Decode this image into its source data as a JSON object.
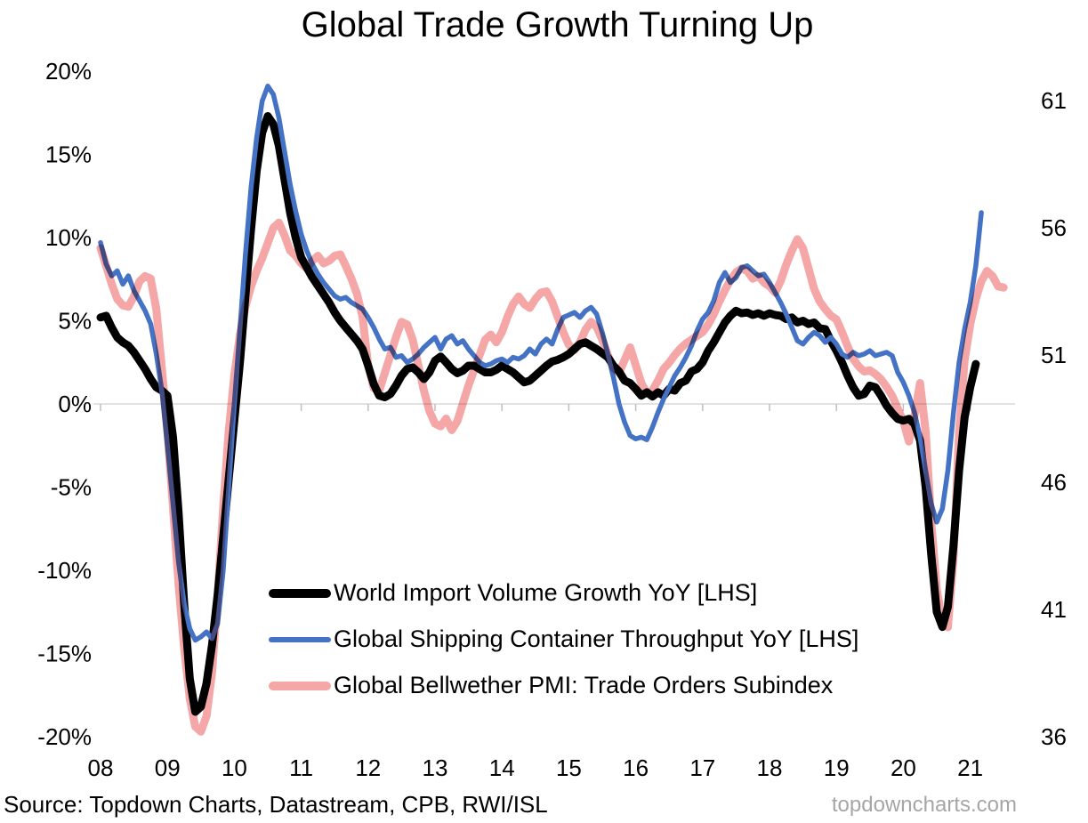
{
  "title": "Global Trade Growth Turning Up",
  "source_note": "Source: Topdown Charts, Datastream, CPB, RWI/ISL",
  "watermark": "topdowncharts.com",
  "colors": {
    "world_imports": "#000000",
    "container_throughput": "#4472C4",
    "pmi": "#F5A6A6",
    "zero_line": "#D9D9D9",
    "tick": "#BFBFBF",
    "watermark": "#A6A6A6"
  },
  "chart_data": {
    "type": "line",
    "title": "Global Trade Growth Turning Up",
    "x_start": "2008-01",
    "x_frequency": "monthly",
    "x_tick_labels": [
      "08",
      "09",
      "10",
      "11",
      "12",
      "13",
      "14",
      "15",
      "16",
      "17",
      "18",
      "19",
      "20",
      "21"
    ],
    "left_axis": {
      "tick_labels": [
        "20%",
        "15%",
        "10%",
        "5%",
        "0%",
        "-5%",
        "-10%",
        "-15%",
        "-20%"
      ],
      "min": -20,
      "max": 20,
      "gridlines": "zero-only"
    },
    "right_axis": {
      "tick_labels": [
        "61",
        "56",
        "51",
        "46",
        "41",
        "36"
      ],
      "min": 36,
      "max": 61
    },
    "legend_position": "inside-lower-left",
    "series": [
      {
        "name": "World Import Volume Growth YoY [LHS]",
        "axis": "left",
        "color": "#000000",
        "stroke_width": 9,
        "values": [
          5.2,
          5.3,
          4.6,
          4.0,
          3.7,
          3.5,
          3.1,
          2.6,
          2.1,
          1.5,
          1.0,
          0.8,
          0.5,
          -2.0,
          -6.5,
          -12.0,
          -16.5,
          -18.5,
          -18.2,
          -16.8,
          -14.5,
          -11.5,
          -8.0,
          -4.5,
          -1.0,
          2.5,
          6.5,
          10.5,
          14.0,
          16.3,
          17.3,
          16.8,
          15.5,
          13.5,
          11.5,
          10.0,
          8.8,
          8.2,
          7.6,
          7.1,
          6.6,
          6.1,
          5.5,
          5.0,
          4.6,
          4.2,
          3.8,
          3.3,
          2.3,
          1.2,
          0.5,
          0.4,
          0.6,
          1.1,
          1.7,
          2.1,
          2.2,
          1.9,
          1.5,
          1.9,
          2.6,
          2.85,
          2.5,
          2.1,
          1.85,
          2.0,
          2.3,
          2.3,
          2.1,
          1.9,
          1.9,
          2.05,
          2.3,
          2.1,
          1.9,
          1.6,
          1.3,
          1.4,
          1.7,
          2.0,
          2.3,
          2.55,
          2.65,
          2.8,
          3.0,
          3.3,
          3.6,
          3.7,
          3.5,
          3.3,
          3.05,
          2.8,
          2.3,
          1.95,
          1.4,
          1.25,
          0.9,
          0.5,
          0.7,
          0.45,
          0.7,
          0.5,
          0.9,
          0.8,
          1.25,
          1.4,
          1.95,
          2.1,
          2.5,
          3.2,
          3.7,
          4.3,
          4.9,
          5.3,
          5.6,
          5.45,
          5.5,
          5.35,
          5.45,
          5.3,
          5.45,
          5.35,
          5.3,
          5.1,
          5.2,
          4.9,
          5.0,
          4.8,
          4.9,
          4.55,
          4.5,
          3.8,
          3.2,
          2.5,
          1.7,
          1.0,
          0.5,
          0.6,
          1.1,
          1.0,
          0.5,
          -0.1,
          -0.55,
          -0.9,
          -1.0,
          -0.9,
          -1.2,
          -2.2,
          -5.0,
          -9.0,
          -12.5,
          -13.4,
          -12.2,
          -8.5,
          -4.0,
          -0.8,
          1.0,
          2.4
        ]
      },
      {
        "name": "Global Shipping Container Throughput YoY [LHS]",
        "axis": "left",
        "color": "#4472C4",
        "stroke_width": 5.5,
        "values": [
          9.7,
          8.4,
          7.7,
          8.0,
          7.2,
          7.7,
          6.8,
          6.2,
          5.6,
          4.8,
          3.0,
          0.8,
          -2.5,
          -6.0,
          -9.5,
          -12.0,
          -13.5,
          -14.2,
          -14.0,
          -13.7,
          -14.1,
          -13.2,
          -10.0,
          -5.0,
          0.0,
          4.5,
          9.0,
          13.0,
          16.0,
          18.2,
          19.1,
          18.6,
          17.2,
          15.2,
          13.2,
          11.6,
          10.2,
          9.2,
          8.4,
          7.8,
          7.3,
          6.9,
          6.5,
          6.3,
          6.4,
          6.1,
          5.9,
          5.7,
          5.2,
          4.6,
          3.9,
          3.3,
          3.4,
          2.8,
          2.9,
          2.5,
          2.7,
          3.0,
          3.4,
          3.7,
          4.0,
          3.3,
          3.9,
          4.1,
          3.6,
          3.8,
          3.3,
          2.9,
          2.5,
          2.3,
          2.4,
          2.6,
          2.7,
          2.5,
          2.8,
          2.7,
          2.9,
          3.3,
          3.0,
          3.6,
          3.9,
          3.6,
          4.5,
          5.2,
          5.35,
          5.5,
          5.2,
          5.6,
          5.8,
          5.4,
          4.3,
          3.0,
          1.6,
          0.0,
          -1.1,
          -1.9,
          -2.1,
          -2.0,
          -2.15,
          -1.4,
          -0.5,
          0.3,
          1.0,
          1.7,
          2.2,
          2.8,
          3.5,
          4.4,
          5.1,
          5.5,
          6.2,
          7.3,
          7.9,
          7.3,
          7.6,
          8.2,
          8.3,
          8.0,
          7.7,
          7.8,
          7.3,
          6.7,
          6.1,
          5.4,
          4.6,
          3.8,
          3.6,
          4.0,
          4.3,
          4.1,
          3.7,
          4.0,
          3.6,
          3.0,
          2.8,
          3.1,
          2.9,
          3.0,
          3.2,
          2.9,
          3.0,
          3.1,
          2.9,
          1.9,
          1.3,
          0.5,
          -0.5,
          -2.0,
          -4.0,
          -6.0,
          -7.1,
          -6.3,
          -4.0,
          -0.5,
          2.5,
          4.5,
          6.1,
          8.3,
          11.5
        ]
      },
      {
        "name": "Global Bellwether PMI: Trade Orders Subindex",
        "axis": "right",
        "color": "#F5A6A6",
        "stroke_width": 9,
        "values": [
          55.2,
          54.5,
          53.8,
          53.2,
          52.95,
          52.9,
          53.3,
          53.9,
          54.1,
          54.0,
          52.8,
          50.5,
          48.0,
          45.0,
          42.0,
          39.5,
          37.5,
          36.4,
          36.2,
          36.8,
          38.5,
          41.5,
          45.0,
          48.0,
          50.2,
          51.8,
          52.9,
          53.7,
          54.3,
          54.8,
          55.4,
          56.0,
          56.2,
          55.7,
          55.1,
          54.9,
          54.6,
          54.4,
          54.7,
          54.9,
          54.6,
          54.7,
          54.9,
          54.95,
          54.5,
          54.0,
          53.4,
          52.5,
          50.6,
          49.7,
          49.6,
          50.3,
          51.0,
          51.7,
          52.3,
          52.2,
          51.6,
          50.6,
          49.6,
          48.8,
          48.3,
          48.2,
          48.5,
          48.05,
          48.4,
          49.1,
          49.8,
          50.4,
          51.0,
          51.6,
          51.8,
          51.5,
          51.9,
          52.5,
          53.0,
          53.3,
          53.0,
          52.85,
          53.2,
          53.45,
          53.5,
          53.1,
          52.5,
          51.9,
          51.4,
          51.2,
          51.5,
          52.0,
          52.3,
          52.1,
          51.6,
          51.0,
          50.5,
          50.3,
          50.8,
          51.3,
          50.6,
          49.9,
          49.5,
          49.6,
          50.0,
          50.45,
          50.7,
          51.0,
          51.25,
          51.45,
          51.6,
          51.75,
          51.9,
          52.2,
          52.6,
          53.1,
          53.55,
          53.95,
          54.25,
          54.4,
          54.3,
          54.0,
          54.1,
          53.85,
          53.7,
          53.45,
          53.9,
          54.55,
          55.1,
          55.55,
          55.2,
          54.4,
          53.6,
          53.1,
          52.8,
          52.55,
          52.4,
          51.9,
          51.35,
          50.85,
          50.55,
          50.35,
          50.4,
          50.25,
          50.05,
          49.75,
          49.4,
          48.9,
          48.4,
          47.6,
          48.6,
          49.9,
          48.0,
          44.5,
          41.8,
          40.5,
          40.3,
          43.0,
          48.0,
          50.8,
          52.2,
          53.2,
          53.9,
          54.3,
          54.1,
          53.7,
          53.65
        ]
      }
    ]
  }
}
